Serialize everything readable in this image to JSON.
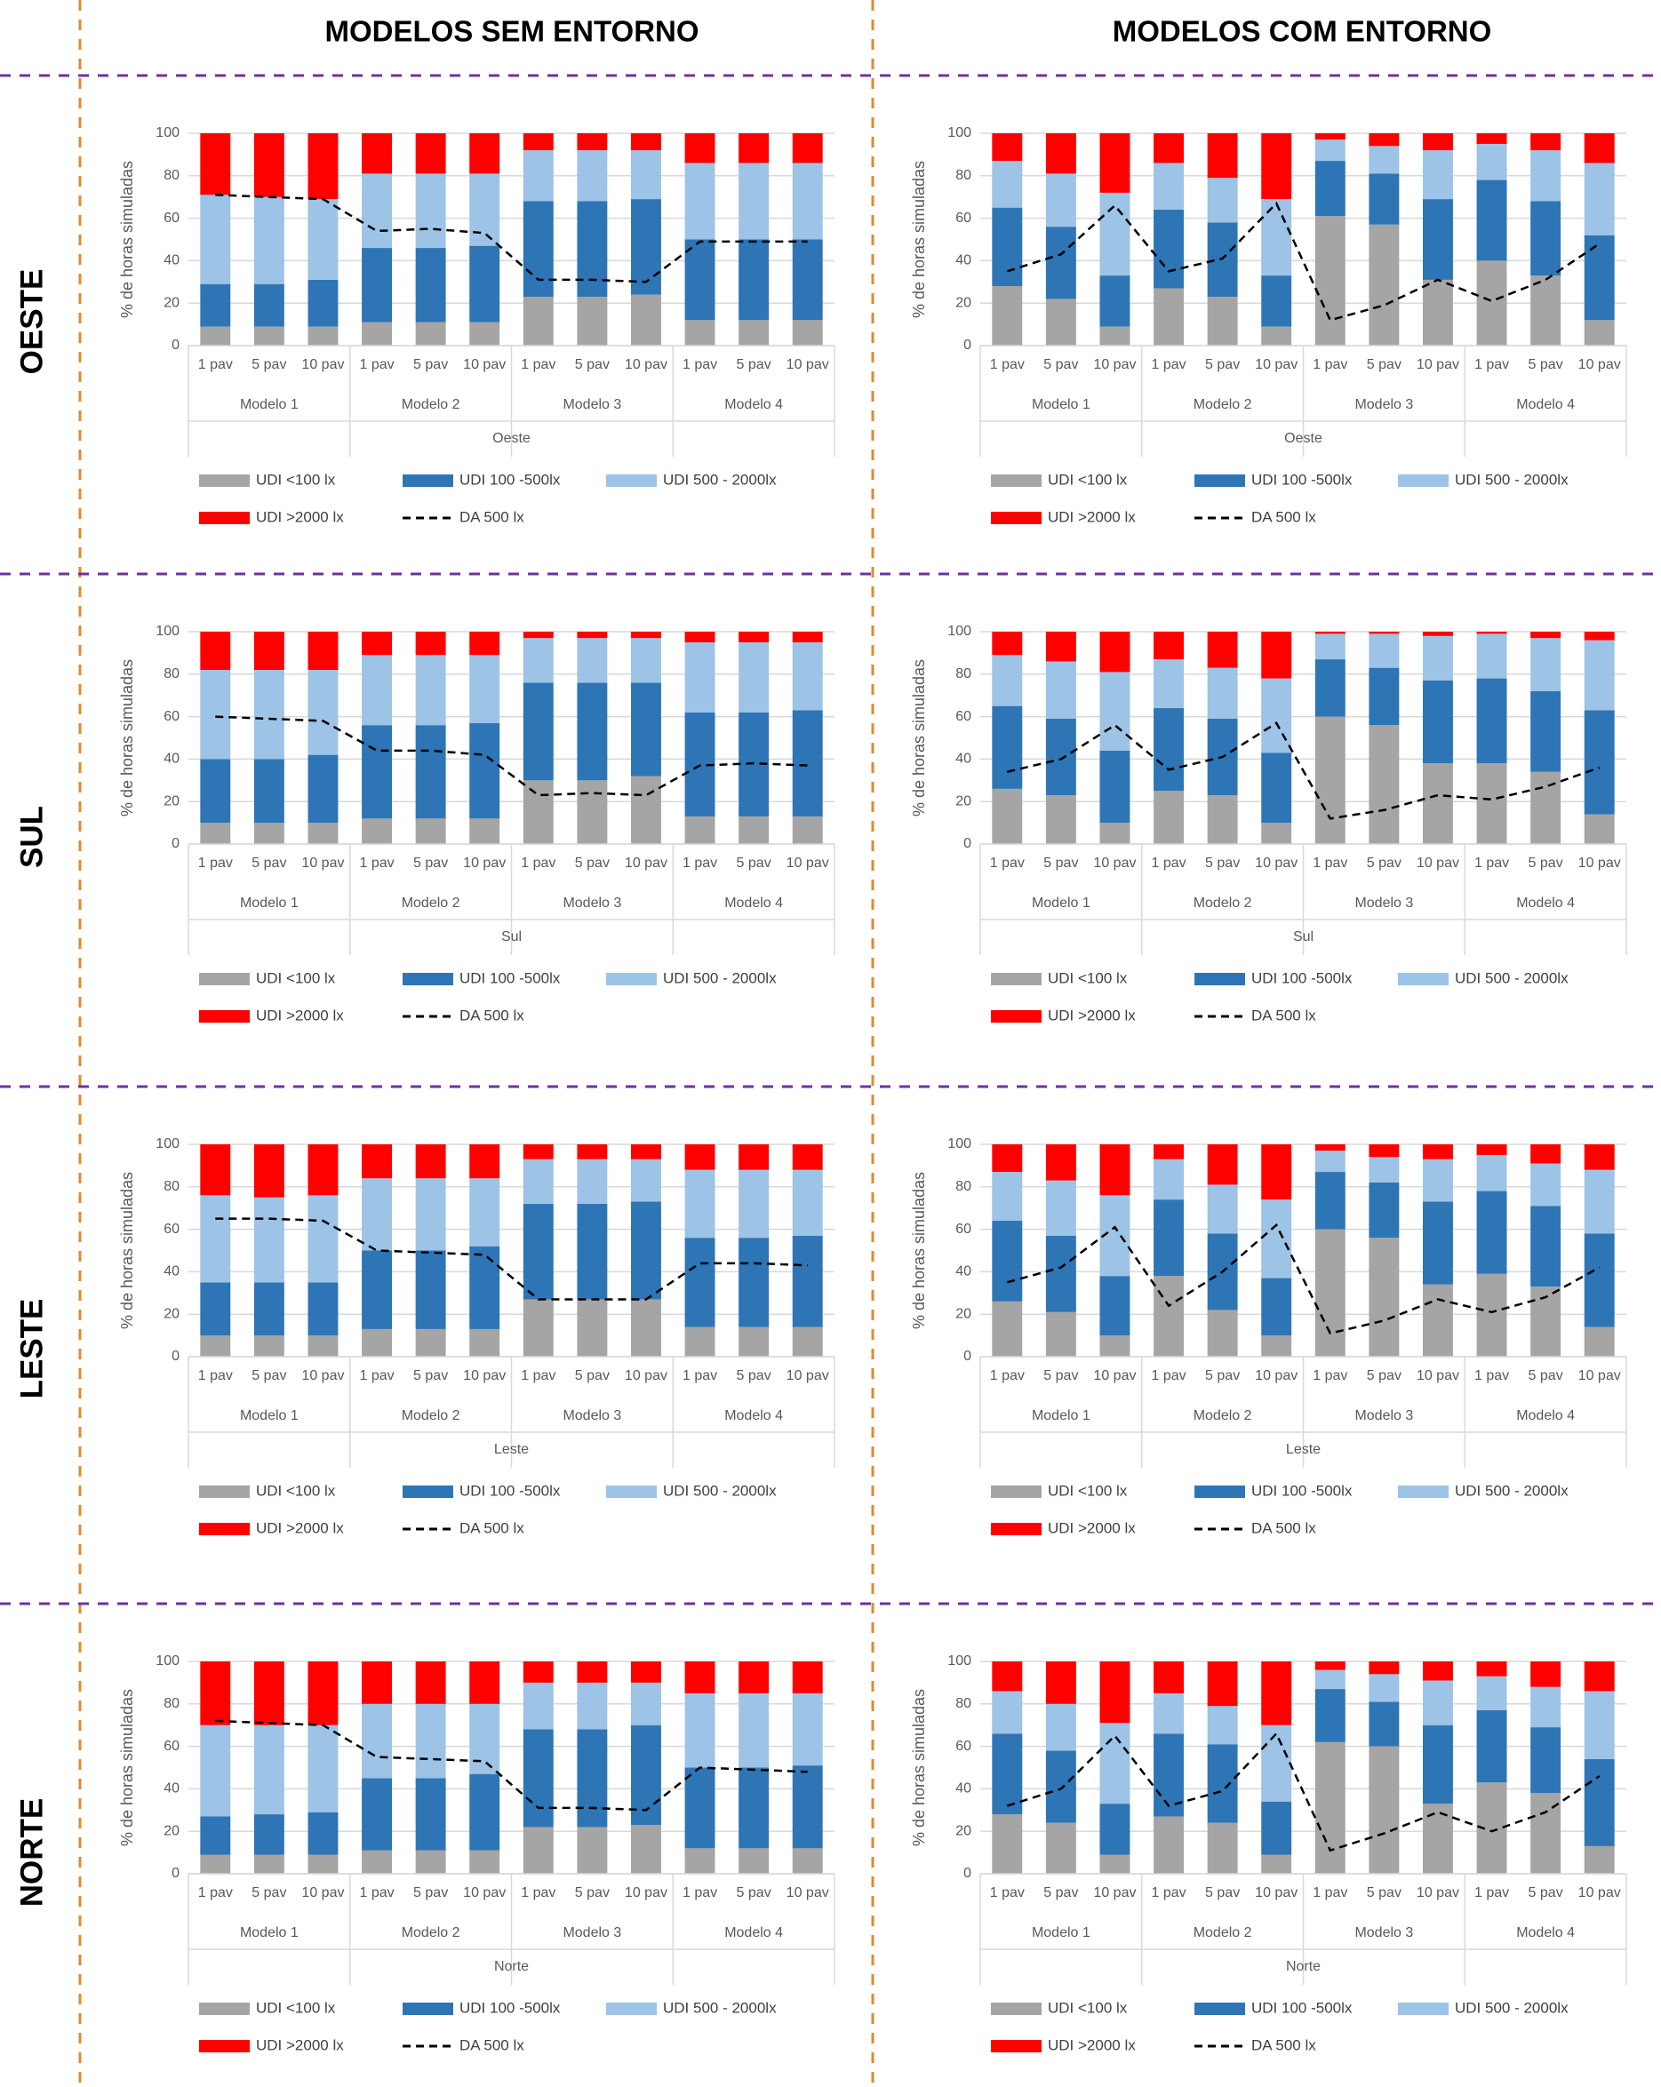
{
  "column_headers": [
    "MODELOS SEM ENTORNO",
    "MODELOS COM ENTORNO"
  ],
  "row_labels": [
    "OESTE",
    "SUL",
    "LESTE",
    "NORTE"
  ],
  "chart_data": [
    {
      "type": "stacked_bar",
      "ylabel": "% de horas simuladas",
      "xlabel": "Oeste",
      "categories": [
        "1 pav",
        "5 pav",
        "10 pav",
        "1 pav",
        "5 pav",
        "10 pav",
        "1 pav",
        "5 pav",
        "10 pav",
        "1 pav",
        "5 pav",
        "10 pav"
      ],
      "groups": [
        "Modelo 1",
        "Modelo 2",
        "Modelo 3",
        "Modelo 4"
      ],
      "ylim": [
        0,
        100
      ],
      "yticks": [
        0,
        20,
        40,
        60,
        80,
        100
      ],
      "grid": true,
      "series": [
        {
          "name": "UDI <100 lx",
          "color": "#a5a5a5",
          "values": [
            9,
            9,
            9,
            11,
            11,
            11,
            23,
            23,
            24,
            12,
            12,
            12
          ]
        },
        {
          "name": "UDI 100 -500lx",
          "color": "#2e75b6",
          "values": [
            20,
            20,
            22,
            35,
            35,
            36,
            45,
            45,
            45,
            38,
            38,
            38
          ]
        },
        {
          "name": "UDI 500 - 2000lx",
          "color": "#9dc3e6",
          "values": [
            42,
            41,
            38,
            35,
            35,
            34,
            24,
            24,
            23,
            36,
            36,
            36
          ]
        },
        {
          "name": "UDI >2000 lx",
          "color": "#ff0000",
          "values": [
            29,
            30,
            31,
            19,
            19,
            19,
            8,
            8,
            8,
            14,
            14,
            14
          ]
        },
        {
          "name": "DA 500 lx",
          "type": "line",
          "dashed": true,
          "color": "#000000",
          "values": [
            71,
            70,
            69,
            54,
            55,
            53,
            31,
            31,
            30,
            49,
            49,
            49
          ]
        }
      ]
    },
    {
      "type": "stacked_bar",
      "ylabel": "% de horas simuladas",
      "xlabel": "Oeste",
      "categories": [
        "1 pav",
        "5 pav",
        "10 pav",
        "1 pav",
        "5 pav",
        "10 pav",
        "1 pav",
        "5 pav",
        "10 pav",
        "1 pav",
        "5 pav",
        "10 pav"
      ],
      "groups": [
        "Modelo 1",
        "Modelo 2",
        "Modelo 3",
        "Modelo 4"
      ],
      "ylim": [
        0,
        100
      ],
      "yticks": [
        0,
        20,
        40,
        60,
        80,
        100
      ],
      "grid": true,
      "series": [
        {
          "name": "UDI <100 lx",
          "color": "#a5a5a5",
          "values": [
            28,
            22,
            9,
            27,
            23,
            9,
            61,
            57,
            31,
            40,
            33,
            12
          ]
        },
        {
          "name": "UDI 100 -500lx",
          "color": "#2e75b6",
          "values": [
            37,
            34,
            24,
            37,
            35,
            24,
            26,
            24,
            38,
            38,
            35,
            40
          ]
        },
        {
          "name": "UDI 500 - 2000lx",
          "color": "#9dc3e6",
          "values": [
            22,
            25,
            39,
            22,
            21,
            36,
            10,
            13,
            23,
            17,
            24,
            34
          ]
        },
        {
          "name": "UDI >2000 lx",
          "color": "#ff0000",
          "values": [
            13,
            19,
            28,
            14,
            21,
            31,
            3,
            6,
            8,
            5,
            8,
            14
          ]
        },
        {
          "name": "DA 500 lx",
          "type": "line",
          "dashed": true,
          "color": "#000000",
          "values": [
            35,
            43,
            66,
            35,
            41,
            67,
            12,
            19,
            31,
            21,
            31,
            48
          ]
        }
      ]
    },
    {
      "type": "stacked_bar",
      "ylabel": "% de horas simuladas",
      "xlabel": "Sul",
      "categories": [
        "1 pav",
        "5 pav",
        "10 pav",
        "1 pav",
        "5 pav",
        "10 pav",
        "1 pav",
        "5 pav",
        "10 pav",
        "1 pav",
        "5 pav",
        "10 pav"
      ],
      "groups": [
        "Modelo 1",
        "Modelo 2",
        "Modelo 3",
        "Modelo 4"
      ],
      "ylim": [
        0,
        100
      ],
      "yticks": [
        0,
        20,
        40,
        60,
        80,
        100
      ],
      "grid": true,
      "series": [
        {
          "name": "UDI <100 lx",
          "color": "#a5a5a5",
          "values": [
            10,
            10,
            10,
            12,
            12,
            12,
            30,
            30,
            32,
            13,
            13,
            13
          ]
        },
        {
          "name": "UDI 100 -500lx",
          "color": "#2e75b6",
          "values": [
            30,
            30,
            32,
            44,
            44,
            45,
            46,
            46,
            44,
            49,
            49,
            50
          ]
        },
        {
          "name": "UDI 500 - 2000lx",
          "color": "#9dc3e6",
          "values": [
            42,
            42,
            40,
            33,
            33,
            32,
            21,
            21,
            21,
            33,
            33,
            32
          ]
        },
        {
          "name": "UDI >2000 lx",
          "color": "#ff0000",
          "values": [
            18,
            18,
            18,
            11,
            11,
            11,
            3,
            3,
            3,
            5,
            5,
            5
          ]
        },
        {
          "name": "DA 500 lx",
          "type": "line",
          "dashed": true,
          "color": "#000000",
          "values": [
            60,
            59,
            58,
            44,
            44,
            42,
            23,
            24,
            23,
            37,
            38,
            37
          ]
        }
      ]
    },
    {
      "type": "stacked_bar",
      "ylabel": "% de horas simuladas",
      "xlabel": "Sul",
      "categories": [
        "1 pav",
        "5 pav",
        "10 pav",
        "1 pav",
        "5 pav",
        "10 pav",
        "1 pav",
        "5 pav",
        "10 pav",
        "1 pav",
        "5 pav",
        "10 pav"
      ],
      "groups": [
        "Modelo 1",
        "Modelo 2",
        "Modelo 3",
        "Modelo 4"
      ],
      "ylim": [
        0,
        100
      ],
      "yticks": [
        0,
        20,
        40,
        60,
        80,
        100
      ],
      "grid": true,
      "series": [
        {
          "name": "UDI <100 lx",
          "color": "#a5a5a5",
          "values": [
            26,
            23,
            10,
            25,
            23,
            10,
            60,
            56,
            38,
            38,
            34,
            14
          ]
        },
        {
          "name": "UDI 100 -500lx",
          "color": "#2e75b6",
          "values": [
            39,
            36,
            34,
            39,
            36,
            33,
            27,
            27,
            39,
            40,
            38,
            49
          ]
        },
        {
          "name": "UDI 500 - 2000lx",
          "color": "#9dc3e6",
          "values": [
            24,
            27,
            37,
            23,
            24,
            35,
            12,
            16,
            21,
            21,
            25,
            33
          ]
        },
        {
          "name": "UDI >2000 lx",
          "color": "#ff0000",
          "values": [
            11,
            14,
            19,
            13,
            17,
            22,
            1,
            1,
            2,
            1,
            3,
            4
          ]
        },
        {
          "name": "DA 500 lx",
          "type": "line",
          "dashed": true,
          "color": "#000000",
          "values": [
            34,
            40,
            56,
            35,
            41,
            57,
            12,
            16,
            23,
            21,
            27,
            36
          ]
        }
      ]
    },
    {
      "type": "stacked_bar",
      "ylabel": "% de horas simuladas",
      "xlabel": "Leste",
      "categories": [
        "1 pav",
        "5 pav",
        "10 pav",
        "1 pav",
        "5 pav",
        "10 pav",
        "1 pav",
        "5 pav",
        "10 pav",
        "1 pav",
        "5 pav",
        "10 pav"
      ],
      "groups": [
        "Modelo 1",
        "Modelo 2",
        "Modelo 3",
        "Modelo 4"
      ],
      "ylim": [
        0,
        100
      ],
      "yticks": [
        0,
        20,
        40,
        60,
        80,
        100
      ],
      "grid": true,
      "series": [
        {
          "name": "UDI <100 lx",
          "color": "#a5a5a5",
          "values": [
            10,
            10,
            10,
            13,
            13,
            13,
            27,
            27,
            27,
            14,
            14,
            14
          ]
        },
        {
          "name": "UDI 100 -500lx",
          "color": "#2e75b6",
          "values": [
            25,
            25,
            25,
            37,
            37,
            39,
            45,
            45,
            46,
            42,
            42,
            43
          ]
        },
        {
          "name": "UDI 500 - 2000lx",
          "color": "#9dc3e6",
          "values": [
            41,
            40,
            41,
            34,
            34,
            32,
            21,
            21,
            20,
            32,
            32,
            31
          ]
        },
        {
          "name": "UDI >2000 lx",
          "color": "#ff0000",
          "values": [
            24,
            25,
            24,
            16,
            16,
            16,
            7,
            7,
            7,
            12,
            12,
            12
          ]
        },
        {
          "name": "DA 500 lx",
          "type": "line",
          "dashed": true,
          "color": "#000000",
          "values": [
            65,
            65,
            64,
            50,
            49,
            48,
            27,
            27,
            27,
            44,
            44,
            43
          ]
        }
      ]
    },
    {
      "type": "stacked_bar",
      "ylabel": "% de horas simuladas",
      "xlabel": "Leste",
      "categories": [
        "1 pav",
        "5 pav",
        "10 pav",
        "1 pav",
        "5 pav",
        "10 pav",
        "1 pav",
        "5 pav",
        "10 pav",
        "1 pav",
        "5 pav",
        "10 pav"
      ],
      "groups": [
        "Modelo 1",
        "Modelo 2",
        "Modelo 3",
        "Modelo 4"
      ],
      "ylim": [
        0,
        100
      ],
      "yticks": [
        0,
        20,
        40,
        60,
        80,
        100
      ],
      "grid": true,
      "series": [
        {
          "name": "UDI <100 lx",
          "color": "#a5a5a5",
          "values": [
            26,
            21,
            10,
            38,
            22,
            10,
            60,
            56,
            34,
            39,
            33,
            14
          ]
        },
        {
          "name": "UDI 100 -500lx",
          "color": "#2e75b6",
          "values": [
            38,
            36,
            28,
            36,
            36,
            27,
            27,
            26,
            39,
            39,
            38,
            44
          ]
        },
        {
          "name": "UDI 500 - 2000lx",
          "color": "#9dc3e6",
          "values": [
            23,
            26,
            38,
            19,
            23,
            37,
            10,
            12,
            20,
            17,
            20,
            30
          ]
        },
        {
          "name": "UDI >2000 lx",
          "color": "#ff0000",
          "values": [
            13,
            17,
            24,
            7,
            19,
            26,
            3,
            6,
            7,
            5,
            9,
            12
          ]
        },
        {
          "name": "DA 500 lx",
          "type": "line",
          "dashed": true,
          "color": "#000000",
          "values": [
            35,
            42,
            61,
            24,
            40,
            62,
            11,
            17,
            27,
            21,
            28,
            42
          ]
        }
      ]
    },
    {
      "type": "stacked_bar",
      "ylabel": "% de horas simuladas",
      "xlabel": "Norte",
      "categories": [
        "1 pav",
        "5 pav",
        "10 pav",
        "1 pav",
        "5 pav",
        "10 pav",
        "1 pav",
        "5 pav",
        "10 pav",
        "1 pav",
        "5 pav",
        "10 pav"
      ],
      "groups": [
        "Modelo 1",
        "Modelo 2",
        "Modelo 3",
        "Modelo 4"
      ],
      "ylim": [
        0,
        100
      ],
      "yticks": [
        0,
        20,
        40,
        60,
        80,
        100
      ],
      "grid": true,
      "series": [
        {
          "name": "UDI <100 lx",
          "color": "#a5a5a5",
          "values": [
            9,
            9,
            9,
            11,
            11,
            11,
            22,
            22,
            23,
            12,
            12,
            12
          ]
        },
        {
          "name": "UDI 100 -500lx",
          "color": "#2e75b6",
          "values": [
            18,
            19,
            20,
            34,
            34,
            36,
            46,
            46,
            47,
            38,
            38,
            39
          ]
        },
        {
          "name": "UDI 500 - 2000lx",
          "color": "#9dc3e6",
          "values": [
            43,
            42,
            41,
            35,
            35,
            33,
            22,
            22,
            20,
            35,
            35,
            34
          ]
        },
        {
          "name": "UDI >2000 lx",
          "color": "#ff0000",
          "values": [
            30,
            30,
            30,
            20,
            20,
            20,
            10,
            10,
            10,
            15,
            15,
            15
          ]
        },
        {
          "name": "DA 500 lx",
          "type": "line",
          "dashed": true,
          "color": "#000000",
          "values": [
            72,
            71,
            70,
            55,
            54,
            53,
            31,
            31,
            30,
            50,
            49,
            48
          ]
        }
      ]
    },
    {
      "type": "stacked_bar",
      "ylabel": "% de horas simuladas",
      "xlabel": "Norte",
      "categories": [
        "1 pav",
        "5 pav",
        "10 pav",
        "1 pav",
        "5 pav",
        "10 pav",
        "1 pav",
        "5 pav",
        "10 pav",
        "1 pav",
        "5 pav",
        "10 pav"
      ],
      "groups": [
        "Modelo 1",
        "Modelo 2",
        "Modelo 3",
        "Modelo 4"
      ],
      "ylim": [
        0,
        100
      ],
      "yticks": [
        0,
        20,
        40,
        60,
        80,
        100
      ],
      "grid": true,
      "series": [
        {
          "name": "UDI <100 lx",
          "color": "#a5a5a5",
          "values": [
            28,
            24,
            9,
            27,
            24,
            9,
            62,
            60,
            33,
            43,
            38,
            13
          ]
        },
        {
          "name": "UDI 100 -500lx",
          "color": "#2e75b6",
          "values": [
            38,
            34,
            24,
            39,
            37,
            25,
            25,
            21,
            37,
            34,
            31,
            41
          ]
        },
        {
          "name": "UDI 500 - 2000lx",
          "color": "#9dc3e6",
          "values": [
            20,
            22,
            38,
            19,
            18,
            36,
            9,
            13,
            21,
            16,
            19,
            32
          ]
        },
        {
          "name": "UDI >2000 lx",
          "color": "#ff0000",
          "values": [
            14,
            20,
            29,
            15,
            21,
            30,
            4,
            6,
            9,
            7,
            12,
            14
          ]
        },
        {
          "name": "DA 500 lx",
          "type": "line",
          "dashed": true,
          "color": "#000000",
          "values": [
            32,
            40,
            65,
            32,
            39,
            66,
            11,
            19,
            29,
            20,
            29,
            46
          ]
        }
      ]
    }
  ]
}
